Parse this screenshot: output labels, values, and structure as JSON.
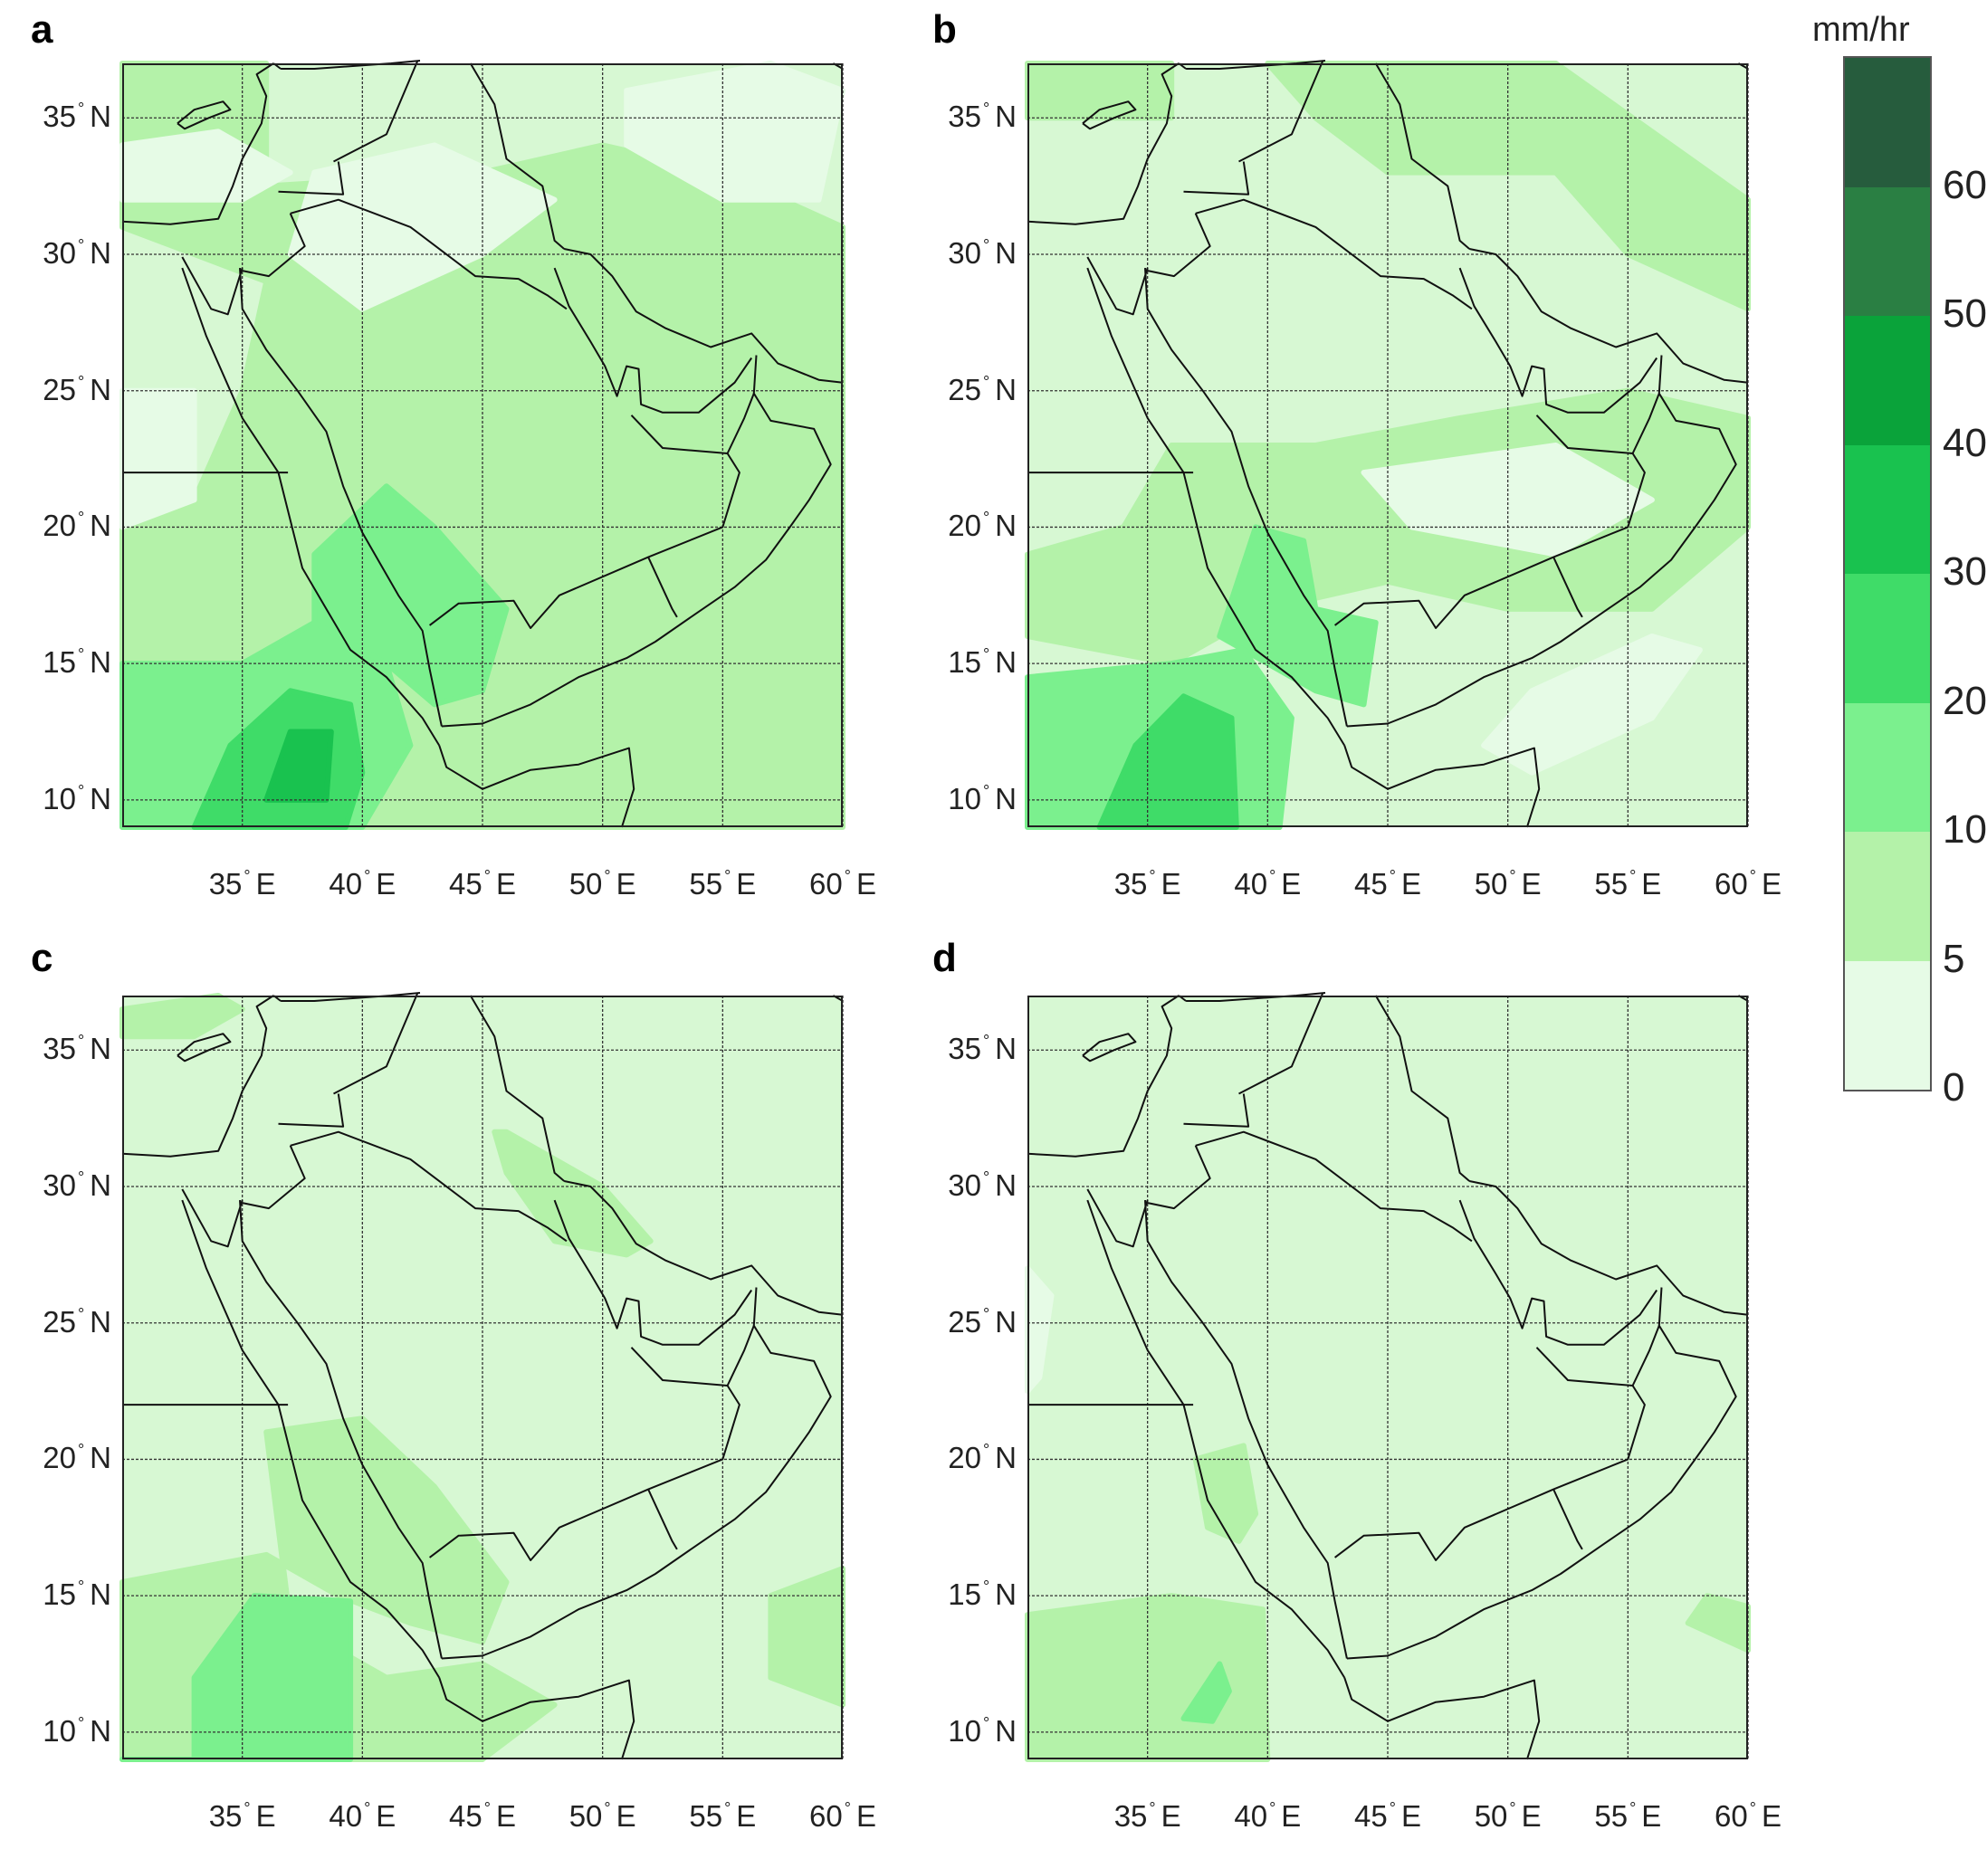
{
  "panels": [
    {
      "letter": "a"
    },
    {
      "letter": "b"
    },
    {
      "letter": "c"
    },
    {
      "letter": "d"
    }
  ],
  "map": {
    "lat_ticks": [
      "10",
      "15",
      "20",
      "25",
      "30",
      "35"
    ],
    "lat_suffix": "N",
    "lon_ticks": [
      "35",
      "40",
      "45",
      "50",
      "55",
      "60"
    ],
    "lon_suffix": "E",
    "degree_symbol": "°",
    "extent": {
      "lon_min": 30,
      "lon_max": 60,
      "lat_min": 9,
      "lat_max": 37
    }
  },
  "colorbar": {
    "unit": "mm/hr",
    "levels": [
      0,
      5,
      10,
      20,
      30,
      40,
      50,
      60,
      70
    ],
    "tick_labels": [
      "0",
      "5",
      "10",
      "20",
      "30",
      "40",
      "50",
      "60"
    ],
    "colors": [
      "#e6fbe6",
      "#b4f2a9",
      "#7bf08e",
      "#3fdc68",
      "#19c24f",
      "#0aa33a",
      "#2a7f43",
      "#265c3d"
    ]
  },
  "colors": {
    "land_base": "#d7f8d3",
    "sea_light": "#c8f3c0",
    "border": "#111111",
    "grid": "#333333"
  }
}
